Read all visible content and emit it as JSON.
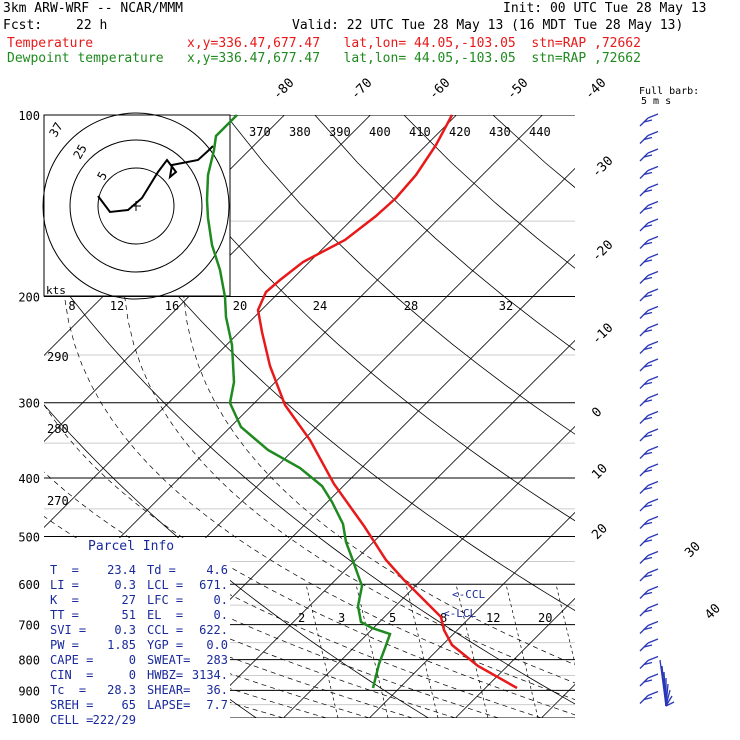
{
  "header": {
    "model": "3km ARW-WRF -- NCAR/MMM",
    "init": "Init: 00 UTC Tue 28 May 13",
    "fcst_label": "Fcst:",
    "fcst_value": "22 h",
    "valid": "Valid: 22 UTC Tue 28 May 13 (16 MDT Tue 28 May 13)",
    "temp_line": "Temperature            x,y=336.47,677.47   lat,lon= 44.05,-103.05  stn=RAP ,72662",
    "dew_line": "Dewpoint temperature   x,y=336.47,677.47   lat,lon= 44.05,-103.05  stn=RAP ,72662"
  },
  "colors": {
    "temperature": "#e8191a",
    "dewpoint": "#1f8a1f",
    "parcel_text": "#1a2a9c",
    "wind_barbs": "#2a36b8"
  },
  "chart_data": {
    "type": "line",
    "pressure_levels": [
      "100",
      "200",
      "300",
      "400",
      "500",
      "600",
      "700",
      "800",
      "900",
      "1000"
    ],
    "top_isotherm_labels": [
      "-80",
      "-70",
      "-60",
      "-50",
      "-40"
    ],
    "right_isotherm_labels": [
      "-30",
      "-20",
      "-10",
      "0",
      "10",
      "20",
      "30",
      "40"
    ],
    "theta_labels": [
      "370",
      "380",
      "390",
      "400",
      "410",
      "420",
      "430",
      "440"
    ],
    "theta_labels_lower": [
      "290",
      "280",
      "270"
    ],
    "mixing_ratio_labels": [
      "2",
      "3",
      "5",
      "8",
      "12",
      "20"
    ],
    "hodograph_speed_labels": [
      "8",
      "12",
      "16",
      "20",
      "24",
      "28",
      "32"
    ],
    "hodograph_ring_labels": [
      "5",
      "25",
      "37"
    ],
    "kts_label": "kts",
    "full_barb_label": "Full barb:",
    "full_barb_value": "5 m s",
    "ccl_label": "<-CCL",
    "lcl_label": "<-LCL",
    "series": [
      {
        "name": "Temperature",
        "pressure": [
          100,
          130,
          160,
          180,
          195,
          210,
          250,
          300,
          350,
          400,
          450,
          500,
          550,
          600,
          650,
          700,
          750,
          800,
          850,
          900
        ],
        "temperature": [
          -60,
          -55,
          -50,
          -48,
          -52,
          -55,
          -48,
          -40,
          -30,
          -20,
          -11,
          -4,
          2,
          6,
          10,
          14,
          16,
          19,
          24,
          28
        ]
      },
      {
        "name": "Dewpoint temperature",
        "pressure": [
          100,
          130,
          160,
          200,
          250,
          300,
          350,
          400,
          450,
          500,
          550,
          600,
          650,
          700,
          750,
          800,
          850,
          900
        ],
        "dewpoint": [
          -95,
          -92,
          -88,
          -80,
          -70,
          -62,
          -45,
          -30,
          -22,
          -14,
          -9,
          -6,
          -4,
          -3,
          2,
          3,
          4,
          4
        ]
      }
    ],
    "hodograph_trace": [
      [
        0,
        0
      ],
      [
        1,
        2
      ],
      [
        3,
        5
      ],
      [
        4,
        7
      ],
      [
        5,
        9
      ],
      [
        6,
        10
      ],
      [
        7,
        10
      ],
      [
        8,
        10
      ],
      [
        9,
        10
      ],
      [
        10,
        11
      ],
      [
        11,
        12
      ]
    ]
  },
  "parcel_info": {
    "title": "Parcel Info",
    "rows": [
      {
        "l1": "T  =",
        "v1": "23.4",
        "l2": "Td =",
        "v2": "4.6"
      },
      {
        "l1": "LI =",
        "v1": "0.3",
        "l2": "LCL =",
        "v2": "671."
      },
      {
        "l1": "K  =",
        "v1": "27",
        "l2": "LFC =",
        "v2": "0."
      },
      {
        "l1": "TT =",
        "v1": "51",
        "l2": "EL  =",
        "v2": "0."
      },
      {
        "l1": "SVI =",
        "v1": "0.3",
        "l2": "CCL =",
        "v2": "622."
      },
      {
        "l1": "PW =",
        "v1": "1.85",
        "l2": "YGP =",
        "v2": "0.0"
      },
      {
        "l1": "CAPE =",
        "v1": "0",
        "l2": "SWEAT=",
        "v2": "283"
      },
      {
        "l1": "CIN  =",
        "v1": "0",
        "l2": "HWBZ=",
        "v2": "3134."
      },
      {
        "l1": "Tc  =",
        "v1": "28.3",
        "l2": "SHEAR=",
        "v2": "36."
      },
      {
        "l1": "SREH =",
        "v1": "65",
        "l2": "LAPSE=",
        "v2": "7.7"
      },
      {
        "l1": "CELL =",
        "v1": "222/29",
        "l2": "",
        "v2": ""
      }
    ]
  }
}
